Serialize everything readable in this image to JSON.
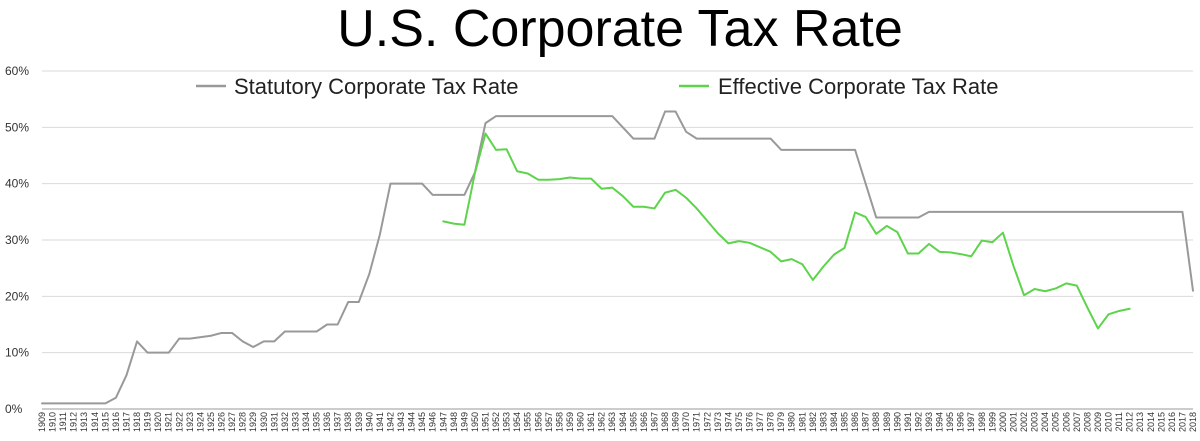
{
  "chart_data": {
    "type": "line",
    "title": "U.S. Corporate Tax Rate",
    "xlabel": "",
    "ylabel": "",
    "ylim": [
      0,
      60
    ],
    "xlim": [
      1909,
      2018
    ],
    "y_ticks": [
      "0%",
      "10%",
      "20%",
      "30%",
      "40%",
      "50%",
      "60%"
    ],
    "x_ticks": [
      "1909",
      "1910",
      "1911",
      "1912",
      "1913",
      "1914",
      "1915",
      "1916",
      "1917",
      "1918",
      "1919",
      "1920",
      "1921",
      "1922",
      "1923",
      "1924",
      "1925",
      "1926",
      "1927",
      "1928",
      "1929",
      "1930",
      "1931",
      "1932",
      "1933",
      "1934",
      "1935",
      "1936",
      "1937",
      "1938",
      "1939",
      "1940",
      "1941",
      "1942",
      "1943",
      "1944",
      "1945",
      "1946",
      "1947",
      "1948",
      "1949",
      "1950",
      "1951",
      "1952",
      "1953",
      "1954",
      "1955",
      "1956",
      "1957",
      "1958",
      "1959",
      "1960",
      "1961",
      "1962",
      "1963",
      "1964",
      "1965",
      "1966",
      "1967",
      "1968",
      "1969",
      "1970",
      "1971",
      "1972",
      "1973",
      "1974",
      "1975",
      "1976",
      "1977",
      "1978",
      "1979",
      "1980",
      "1981",
      "1982",
      "1983",
      "1984",
      "1985",
      "1986",
      "1987",
      "1988",
      "1989",
      "1990",
      "1991",
      "1992",
      "1993",
      "1994",
      "1995",
      "1996",
      "1997",
      "1998",
      "1999",
      "2000",
      "2001",
      "2002",
      "2003",
      "2004",
      "2005",
      "2006",
      "2007",
      "2008",
      "2009",
      "2010",
      "2011",
      "2012",
      "2013",
      "2014",
      "2015",
      "2016",
      "2017",
      "2018"
    ],
    "grid": true,
    "legend_position": "top",
    "series": [
      {
        "name": "Statutory Corporate Tax Rate",
        "color": "#999999",
        "x": [
          1909,
          1915,
          1916,
          1917,
          1918,
          1919,
          1921,
          1922,
          1923,
          1925,
          1926,
          1927,
          1928,
          1929,
          1930,
          1931,
          1932,
          1935,
          1936,
          1937,
          1938,
          1939,
          1940,
          1941,
          1942,
          1945,
          1946,
          1949,
          1950,
          1951,
          1952,
          1963,
          1964,
          1965,
          1967,
          1968,
          1969,
          1970,
          1971,
          1978,
          1979,
          1986,
          1987,
          1988,
          1992,
          1993,
          2017,
          2018
        ],
        "y": [
          1,
          1,
          2,
          6,
          12,
          10,
          10,
          12.5,
          12.5,
          13,
          13.5,
          13.5,
          12,
          11,
          12,
          12,
          13.75,
          13.75,
          15,
          15,
          19,
          19,
          24,
          31,
          40,
          40,
          38,
          38,
          42,
          50.75,
          52,
          52,
          50,
          48,
          48,
          52.8,
          52.8,
          49.2,
          48,
          48,
          46,
          46,
          40,
          34,
          34,
          35,
          35,
          21
        ]
      },
      {
        "name": "Effective Corporate Tax Rate",
        "color": "#5ed34c",
        "x": [
          1947,
          1948,
          1949,
          1950,
          1951,
          1952,
          1953,
          1954,
          1955,
          1956,
          1957,
          1958,
          1959,
          1960,
          1961,
          1962,
          1963,
          1964,
          1965,
          1966,
          1967,
          1968,
          1969,
          1970,
          1971,
          1972,
          1973,
          1974,
          1975,
          1976,
          1977,
          1978,
          1979,
          1980,
          1981,
          1982,
          1983,
          1984,
          1985,
          1986,
          1987,
          1988,
          1989,
          1990,
          1991,
          1992,
          1993,
          1994,
          1995,
          1996,
          1997,
          1998,
          1999,
          2000,
          2001,
          2002,
          2003,
          2004,
          2005,
          2006,
          2007,
          2008,
          2009,
          2010,
          2011,
          2012
        ],
        "y": [
          33.3,
          32.9,
          32.7,
          41.9,
          48.9,
          46,
          46.1,
          42.2,
          41.8,
          40.7,
          40.7,
          40.8,
          41.1,
          40.9,
          40.9,
          39.1,
          39.3,
          37.8,
          35.9,
          35.9,
          35.6,
          38.4,
          38.9,
          37.5,
          35.6,
          33.4,
          31.2,
          29.4,
          29.8,
          29.5,
          28.7,
          27.9,
          26.2,
          26.6,
          25.7,
          22.9,
          25.3,
          27.4,
          28.6,
          34.9,
          34.1,
          31.1,
          32.5,
          31.4,
          27.6,
          27.6,
          29.3,
          27.9,
          27.8,
          27.5,
          27.1,
          29.9,
          29.6,
          31.3,
          25.4,
          20.2,
          21.3,
          20.9,
          21.4,
          22.3,
          21.9,
          18,
          14.3,
          16.8,
          17.4,
          17.8
        ]
      }
    ]
  }
}
